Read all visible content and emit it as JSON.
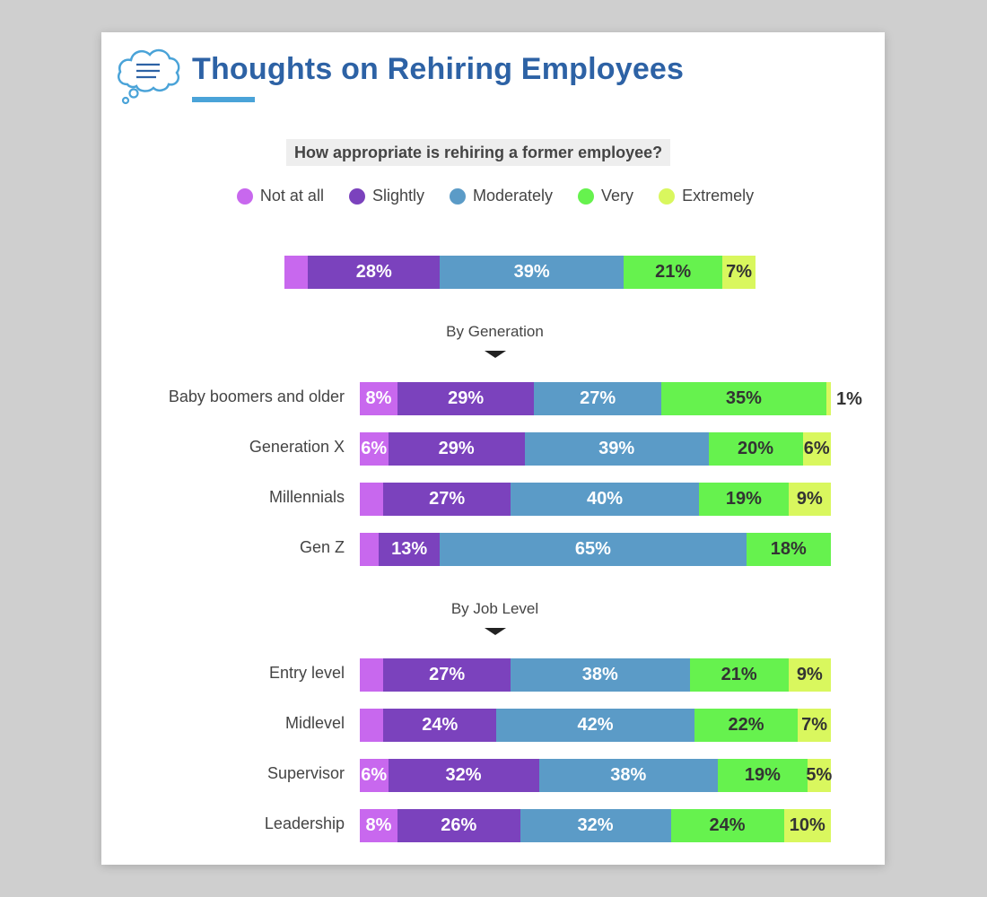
{
  "title": "Thoughts on Rehiring Employees",
  "chart_data": {
    "type": "bar",
    "orientation": "horizontal",
    "stacked": true,
    "question": "How appropriate is rehiring a former employee?",
    "legend": [
      {
        "name": "Not at all",
        "color": "#c868ee"
      },
      {
        "name": "Slightly",
        "color": "#7b42bd"
      },
      {
        "name": "Moderately",
        "color": "#5b9bc7"
      },
      {
        "name": "Very",
        "color": "#66f24e"
      },
      {
        "name": "Extremely",
        "color": "#d9f75e"
      }
    ],
    "overall": {
      "values": [
        5,
        28,
        39,
        21,
        7
      ],
      "labels": [
        "",
        "28%",
        "39%",
        "21%",
        "7%"
      ]
    },
    "sections": [
      {
        "label": "By Generation",
        "rows": [
          {
            "name": "Baby boomers and older",
            "values": [
              8,
              29,
              27,
              35,
              1
            ],
            "labels": [
              "8%",
              "29%",
              "27%",
              "35%",
              "1%"
            ]
          },
          {
            "name": "Generation X",
            "values": [
              6,
              29,
              39,
              20,
              6
            ],
            "labels": [
              "6%",
              "29%",
              "39%",
              "20%",
              "6%"
            ]
          },
          {
            "name": "Millennials",
            "values": [
              5,
              27,
              40,
              19,
              9
            ],
            "labels": [
              "",
              "27%",
              "40%",
              "19%",
              "9%"
            ]
          },
          {
            "name": "Gen Z",
            "values": [
              4,
              13,
              65,
              18,
              0
            ],
            "labels": [
              "",
              "13%",
              "65%",
              "18%",
              ""
            ]
          }
        ]
      },
      {
        "label": "By Job Level",
        "rows": [
          {
            "name": "Entry level",
            "values": [
              5,
              27,
              38,
              21,
              9
            ],
            "labels": [
              "",
              "27%",
              "38%",
              "21%",
              "9%"
            ]
          },
          {
            "name": "Midlevel",
            "values": [
              5,
              24,
              42,
              22,
              7
            ],
            "labels": [
              "",
              "24%",
              "42%",
              "22%",
              "7%"
            ]
          },
          {
            "name": "Supervisor",
            "values": [
              6,
              32,
              38,
              19,
              5
            ],
            "labels": [
              "6%",
              "32%",
              "38%",
              "19%",
              "5%"
            ]
          },
          {
            "name": "Leadership",
            "values": [
              8,
              26,
              32,
              24,
              10
            ],
            "labels": [
              "8%",
              "26%",
              "32%",
              "24%",
              "10%"
            ]
          }
        ]
      }
    ]
  }
}
